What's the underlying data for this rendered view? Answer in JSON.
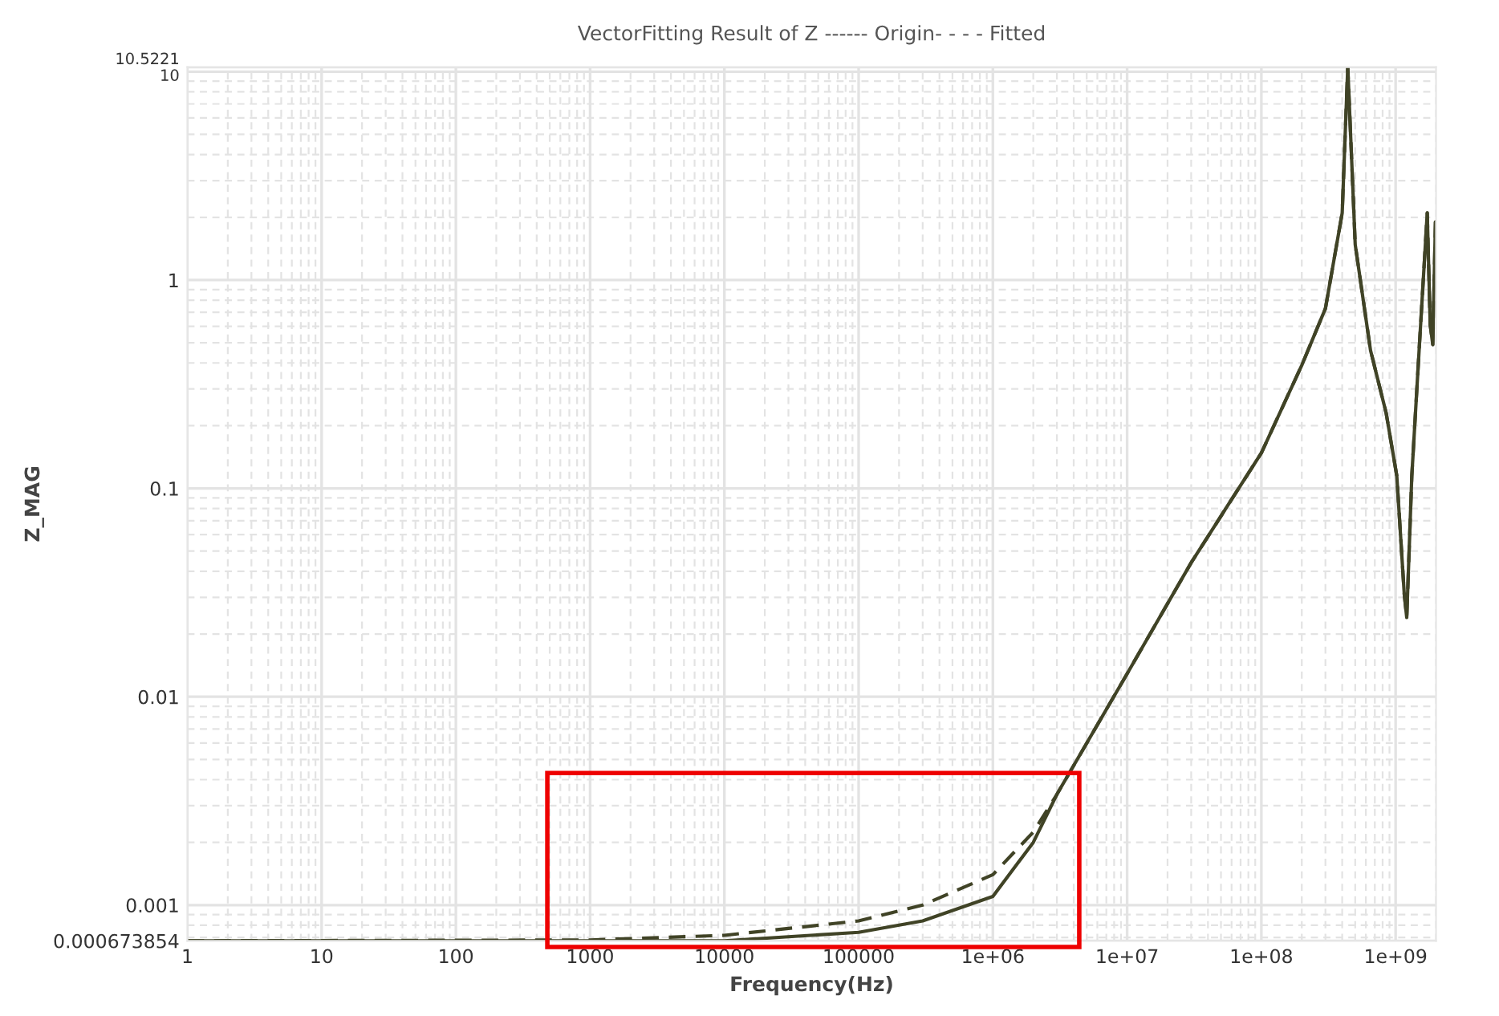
{
  "chart_data": {
    "type": "line",
    "title": "VectorFitting Result of Z ------ Origin- - - - Fitted",
    "xlabel": "Frequency(Hz)",
    "ylabel": "Z_MAG",
    "log": "xy",
    "grid": true,
    "marker": "none",
    "xlim": [
      1,
      2000000000
    ],
    "ylim": [
      0.000673854,
      10.5221
    ],
    "xticks": [
      1,
      10,
      100,
      1000,
      10000,
      100000,
      {
        "value": 1000000,
        "label": "1e+06"
      },
      {
        "value": 10000000,
        "label": "1e+07"
      },
      {
        "value": 100000000,
        "label": "1e+08"
      },
      {
        "value": 1000000000,
        "label": "1e+09"
      }
    ],
    "yticks": [
      0.000673854,
      0.001,
      0.01,
      0.1,
      1,
      10,
      10.5221
    ],
    "series": [
      {
        "color": "#404326",
        "line_style": "solid",
        "x": [
          1,
          1000,
          10000,
          100000,
          300000,
          1000000,
          2000000,
          3000000,
          10000000,
          30000000,
          100000000,
          200000000,
          300000000,
          400000000,
          440000000,
          500000000,
          650000000,
          850000000,
          1020000000,
          1160000000,
          1210000000,
          1320000000,
          1510000000,
          1720000000,
          1810000000,
          1890000000,
          1980000000,
          2000000000
        ],
        "values": [
          0.000673854,
          0.000673854,
          0.000674,
          0.00074,
          0.00084,
          0.0011,
          0.002,
          0.0034,
          0.0129,
          0.044,
          0.148,
          0.39,
          0.73,
          2.1,
          10.5221,
          1.48,
          0.46,
          0.23,
          0.115,
          0.031,
          0.024,
          0.115,
          0.51,
          2.1,
          0.61,
          0.49,
          1.9,
          0.93
        ]
      },
      {
        "color": "#404326",
        "line_style": "dashed",
        "x": [
          1,
          1000,
          10000,
          100000,
          300000,
          1000000,
          2000000,
          3000000,
          10000000,
          30000000,
          100000000,
          200000000,
          300000000,
          400000000,
          440000000,
          500000000,
          650000000,
          850000000,
          1020000000,
          1160000000,
          1210000000,
          1320000000,
          1510000000,
          1720000000,
          1810000000,
          1890000000,
          1980000000,
          2000000000
        ],
        "values": [
          0.000673854,
          0.00068,
          0.000716,
          0.00084,
          0.001,
          0.0014,
          0.00224,
          0.0034,
          0.0129,
          0.044,
          0.148,
          0.39,
          0.73,
          2.1,
          10.5221,
          1.48,
          0.46,
          0.23,
          0.115,
          0.031,
          0.024,
          0.115,
          0.51,
          2.1,
          0.61,
          0.49,
          1.9,
          0.93
        ]
      }
    ]
  }
}
